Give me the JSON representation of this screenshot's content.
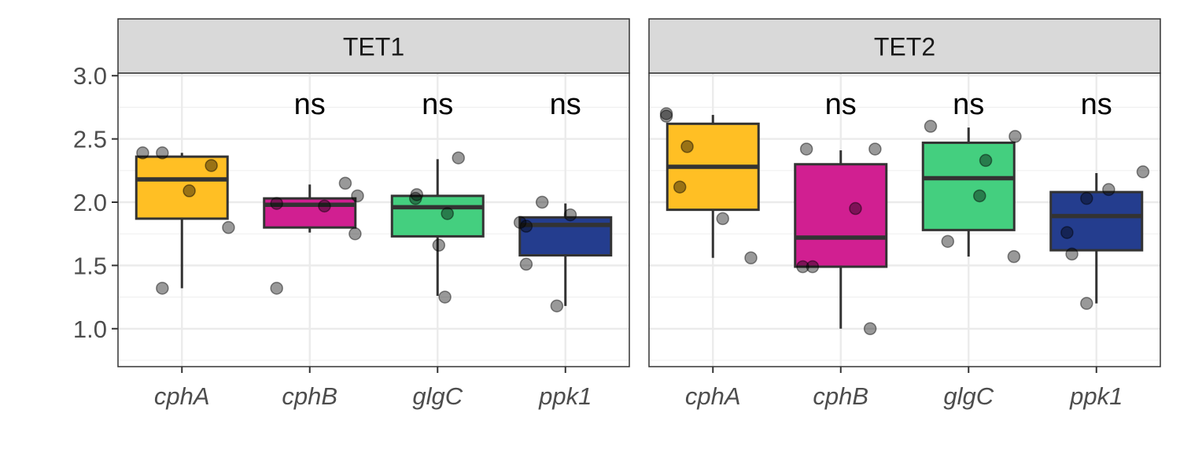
{
  "chart_data": {
    "type": "box",
    "ylim": [
      0.7,
      3.02
    ],
    "y_ticks": [
      "1.0",
      "1.5",
      "2.0",
      "2.5",
      "3.0"
    ],
    "y_tick_values": [
      1.0,
      1.5,
      2.0,
      2.5,
      3.0
    ],
    "grid": true,
    "categories": [
      "cphA",
      "cphB",
      "glgC",
      "ppk1"
    ],
    "category_colors": [
      "#FFBF24",
      "#D11F91",
      "#44CF7F",
      "#243D8E"
    ],
    "panels": [
      {
        "title": "TET1",
        "boxes": [
          {
            "category": "cphA",
            "lower_whisker": 1.32,
            "q1": 1.87,
            "median": 2.18,
            "q3": 2.36,
            "upper_whisker": 2.39,
            "label": "",
            "points": [
              [
                -0.32,
                2.39
              ],
              [
                -0.16,
                2.39
              ],
              [
                0.06,
                2.09
              ],
              [
                0.24,
                2.29
              ],
              [
                0.38,
                1.8
              ],
              [
                -0.16,
                1.32
              ]
            ]
          },
          {
            "category": "cphB",
            "lower_whisker": 1.76,
            "q1": 1.8,
            "median": 1.98,
            "q3": 2.03,
            "upper_whisker": 2.14,
            "label": "ns",
            "points": [
              [
                -0.27,
                1.99
              ],
              [
                0.12,
                1.97
              ],
              [
                0.29,
                2.15
              ],
              [
                0.39,
                2.05
              ],
              [
                0.37,
                1.75
              ],
              [
                -0.27,
                1.32
              ]
            ]
          },
          {
            "category": "glgC",
            "lower_whisker": 1.26,
            "q1": 1.73,
            "median": 1.96,
            "q3": 2.05,
            "upper_whisker": 2.34,
            "label": "ns",
            "points": [
              [
                -0.17,
                2.06
              ],
              [
                -0.18,
                2.03
              ],
              [
                0.08,
                1.91
              ],
              [
                0.17,
                2.35
              ],
              [
                0.01,
                1.66
              ],
              [
                0.06,
                1.25
              ]
            ]
          },
          {
            "category": "ppk1",
            "lower_whisker": 1.18,
            "q1": 1.58,
            "median": 1.82,
            "q3": 1.88,
            "upper_whisker": 1.99,
            "label": "ns",
            "points": [
              [
                -0.37,
                1.84
              ],
              [
                -0.32,
                1.81
              ],
              [
                -0.19,
                2.0
              ],
              [
                0.04,
                1.9
              ],
              [
                -0.32,
                1.51
              ],
              [
                -0.07,
                1.18
              ]
            ]
          }
        ]
      },
      {
        "title": "TET2",
        "boxes": [
          {
            "category": "cphA",
            "lower_whisker": 1.56,
            "q1": 1.94,
            "median": 2.28,
            "q3": 2.62,
            "upper_whisker": 2.69,
            "label": "",
            "points": [
              [
                -0.38,
                2.7
              ],
              [
                -0.38,
                2.68
              ],
              [
                -0.21,
                2.44
              ],
              [
                -0.27,
                2.12
              ],
              [
                0.08,
                1.87
              ],
              [
                0.31,
                1.56
              ]
            ]
          },
          {
            "category": "cphB",
            "lower_whisker": 1.0,
            "q1": 1.49,
            "median": 1.72,
            "q3": 2.3,
            "upper_whisker": 2.41,
            "label": "ns",
            "points": [
              [
                -0.28,
                2.42
              ],
              [
                0.28,
                2.42
              ],
              [
                0.12,
                1.95
              ],
              [
                -0.23,
                1.49
              ],
              [
                -0.31,
                1.49
              ],
              [
                0.24,
                1.0
              ]
            ]
          },
          {
            "category": "glgC",
            "lower_whisker": 1.57,
            "q1": 1.78,
            "median": 2.19,
            "q3": 2.47,
            "upper_whisker": 2.59,
            "label": "ns",
            "points": [
              [
                -0.31,
                2.6
              ],
              [
                0.38,
                2.52
              ],
              [
                0.14,
                2.33
              ],
              [
                0.09,
                2.05
              ],
              [
                -0.17,
                1.69
              ],
              [
                0.37,
                1.57
              ]
            ]
          },
          {
            "category": "ppk1",
            "lower_whisker": 1.2,
            "q1": 1.62,
            "median": 1.89,
            "q3": 2.08,
            "upper_whisker": 2.23,
            "label": "ns",
            "points": [
              [
                -0.08,
                2.03
              ],
              [
                0.1,
                2.1
              ],
              [
                0.38,
                2.24
              ],
              [
                -0.24,
                1.76
              ],
              [
                -0.2,
                1.59
              ],
              [
                -0.08,
                1.2
              ]
            ]
          }
        ]
      }
    ]
  }
}
